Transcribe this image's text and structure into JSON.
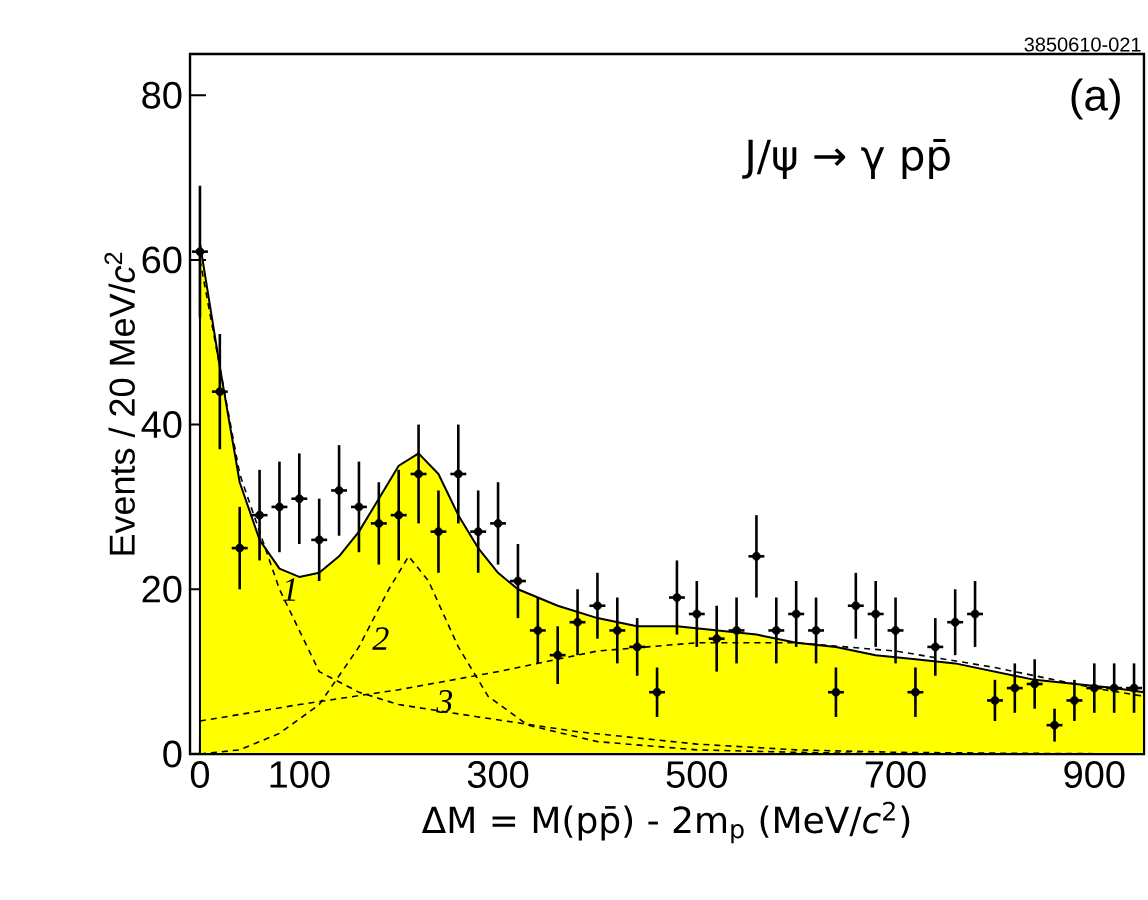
{
  "chart_data": {
    "type": "scatter",
    "title": "J/ψ → γ pp̄",
    "xlabel": "ΔM = M(pp̄) - 2m$_{p}$ (MeV/*c*$^{2}$)",
    "ylabel": "Events / 20 MeV/*c*$^{2}$",
    "annotations": [
      "(a)",
      "3850610-021",
      "1",
      "2",
      "3"
    ],
    "xlim": [
      -10,
      950
    ],
    "ylim": [
      0,
      85
    ],
    "xticks": [
      0,
      100,
      300,
      500,
      700,
      900
    ],
    "yticks": [
      0,
      20,
      40,
      60,
      80
    ],
    "series": [
      {
        "type": "area",
        "color": "#ffff00",
        "line_style": "solid",
        "x": [
          0,
          20,
          40,
          60,
          80,
          100,
          120,
          140,
          160,
          180,
          200,
          220,
          240,
          260,
          280,
          300,
          320,
          360,
          400,
          440,
          480,
          520,
          560,
          600,
          640,
          680,
          720,
          760,
          800,
          840,
          880,
          920,
          950
        ],
        "values": [
          62,
          47,
          33,
          26,
          22.5,
          21.5,
          22,
          24,
          27,
          31,
          35,
          36.5,
          34,
          29,
          25,
          22,
          20,
          18,
          16.5,
          15.5,
          15.5,
          15,
          14.5,
          13.5,
          13,
          12,
          11.5,
          11,
          10,
          9,
          8.5,
          8,
          7.5
        ]
      },
      {
        "type": "line",
        "color": "#000000",
        "line_style": "dashed",
        "x": [
          0,
          40,
          80,
          120,
          160,
          200,
          280,
          380,
          500,
          600,
          700,
          800,
          950
        ],
        "values": [
          60,
          34,
          20,
          10,
          7.5,
          6,
          4.5,
          2.7,
          1.2,
          0.5,
          0.2,
          0.1,
          0
        ]
      },
      {
        "type": "line",
        "color": "#000000",
        "line_style": "dashed",
        "x": [
          0,
          40,
          80,
          120,
          160,
          190,
          210,
          230,
          260,
          290,
          330,
          400,
          500,
          600,
          700
        ],
        "values": [
          0,
          0.5,
          2.5,
          6,
          13,
          20,
          24,
          21,
          13,
          7,
          3.5,
          1.5,
          0.5,
          0.2,
          0
        ]
      },
      {
        "type": "line",
        "color": "#000000",
        "line_style": "dashed",
        "x": [
          0,
          100,
          200,
          300,
          400,
          500,
          600,
          700,
          800,
          900,
          950
        ],
        "values": [
          4,
          6,
          7.8,
          10,
          12.5,
          13.5,
          13.5,
          12.5,
          10.5,
          8,
          7
        ]
      },
      {
        "color": "#000000",
        "x": [
          0,
          20,
          40,
          60,
          80,
          100,
          120,
          140,
          160,
          180,
          200,
          220,
          240,
          260,
          280,
          300,
          320,
          340,
          360,
          380,
          400,
          420,
          440,
          460,
          480,
          500,
          520,
          540,
          560,
          580,
          600,
          620,
          640,
          660,
          680,
          700,
          720,
          740,
          760,
          780,
          800,
          820,
          840,
          860,
          880,
          900,
          920,
          940
        ],
        "values": [
          61,
          44,
          25,
          29,
          30,
          31,
          26,
          32,
          30,
          28,
          29,
          34,
          27,
          34,
          27,
          28,
          21,
          15,
          12,
          16,
          18,
          15,
          13,
          7.5,
          19,
          17,
          14,
          15,
          24,
          15,
          17,
          15,
          7.5,
          18,
          17,
          15,
          7.5,
          13,
          16,
          17,
          6.5,
          8,
          8.5,
          3.5,
          6.5,
          8,
          8,
          8
        ],
        "errors": [
          8,
          7,
          5,
          5.5,
          5.5,
          5.5,
          5,
          5.5,
          5.5,
          5,
          5.5,
          6,
          5,
          6,
          5,
          5,
          4.5,
          4,
          3.5,
          4,
          4,
          4,
          3.5,
          3,
          4.5,
          4,
          4,
          4,
          5,
          4,
          4,
          4,
          3,
          4,
          4,
          4,
          3,
          3.5,
          4,
          4,
          2.5,
          3,
          3,
          2,
          2.5,
          3,
          3,
          3
        ],
        "xerrors": [
          8,
          8,
          8,
          8,
          8,
          8,
          8,
          8,
          8,
          8,
          8,
          8,
          8,
          8,
          8,
          8,
          8,
          8,
          8,
          8,
          8,
          8,
          8,
          8,
          8,
          8,
          8,
          8,
          8,
          8,
          8,
          8,
          8,
          8,
          8,
          8,
          8,
          8,
          8,
          8,
          8,
          8,
          8,
          8,
          8,
          8,
          8,
          8
        ]
      }
    ]
  }
}
